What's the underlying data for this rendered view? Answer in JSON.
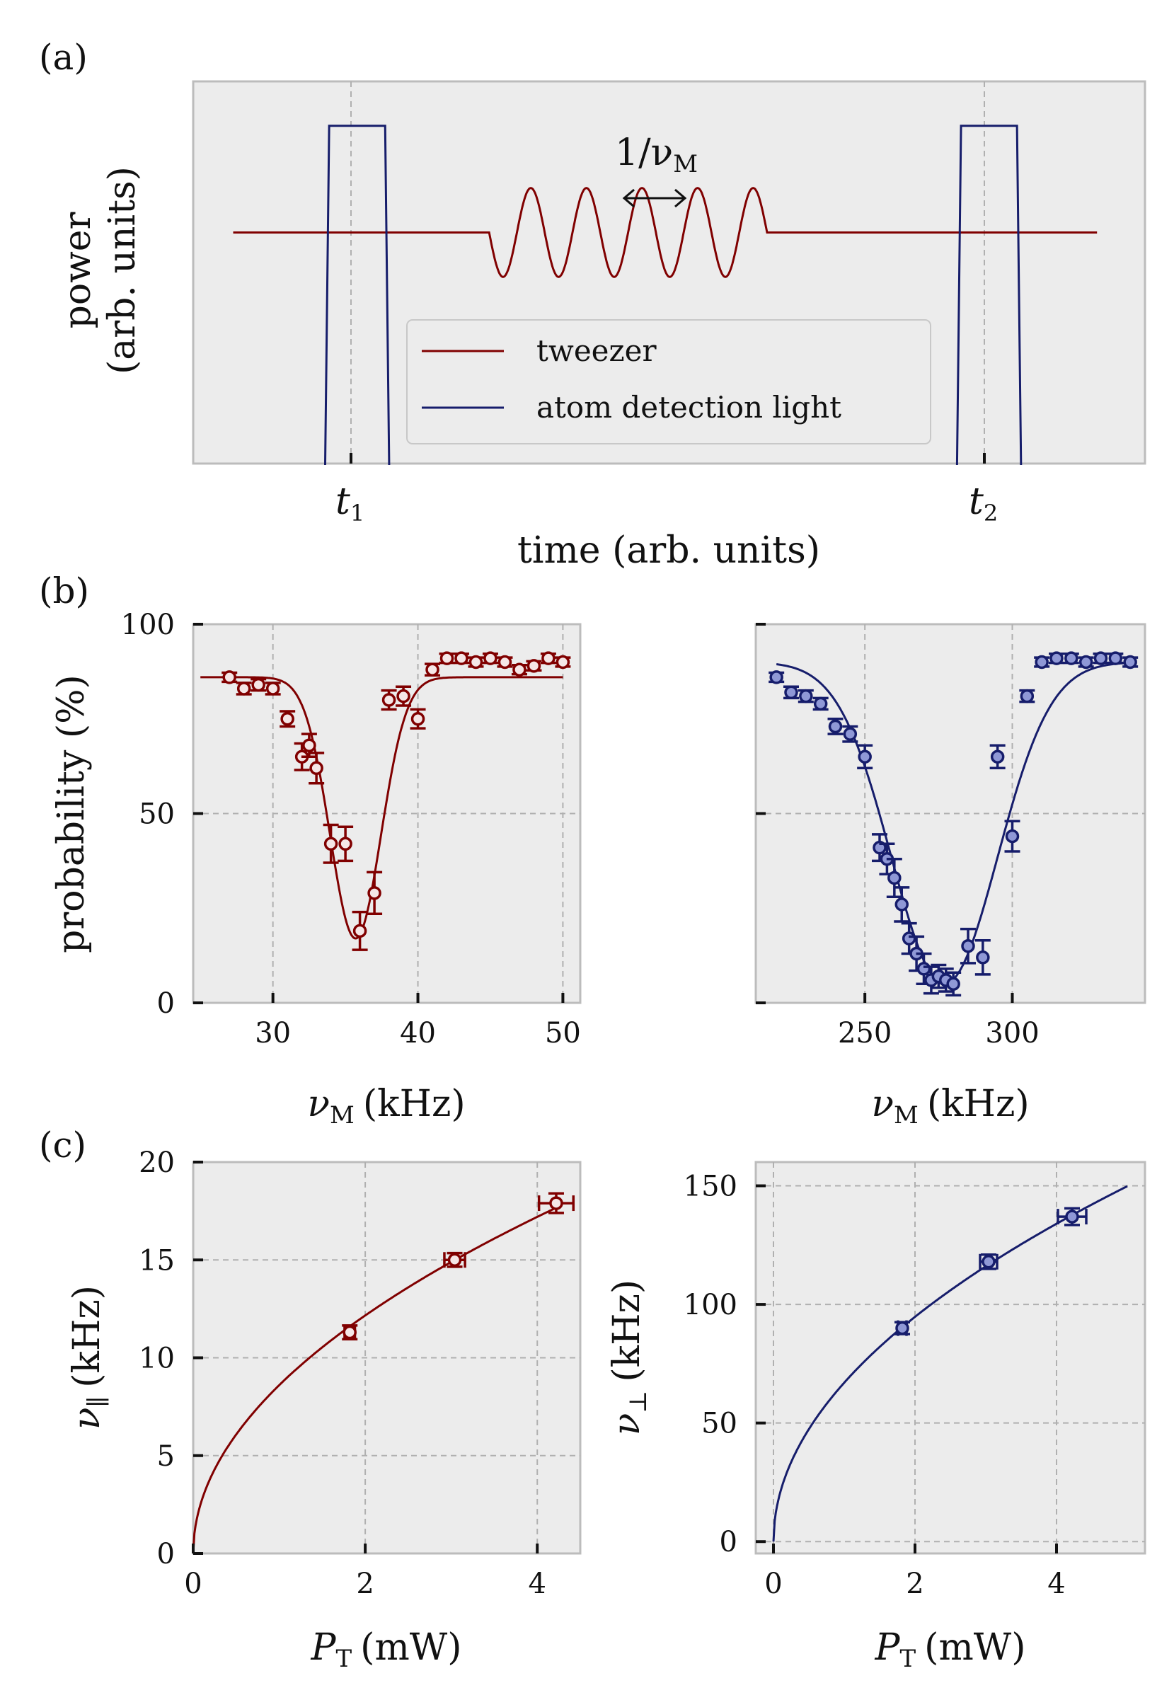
{
  "colors": {
    "red": "#800000",
    "blue": "#161d6b",
    "red_fill": "#f5e6e6",
    "blue_fill": "#8f98d6"
  },
  "panel_labels": {
    "a": "(a)",
    "b": "(b)",
    "c": "(c)"
  },
  "chart_data": [
    {
      "id": "a",
      "type": "line",
      "title": "",
      "xlabel": "time (arb. units)",
      "ylabel_line1": "power",
      "ylabel_line2": "(arb. units)",
      "annotation": "1/ν_M",
      "annotation_sub": "M",
      "annotation_main": "1/ν",
      "xticks": [
        {
          "label": "t",
          "sub": "1",
          "x": 0.12
        },
        {
          "label": "t",
          "sub": "2",
          "x": 0.91
        }
      ],
      "xlim": [
        -0.08,
        1.11
      ],
      "ylim": [
        -1.3,
        0.85
      ],
      "legend": [
        "tweezer",
        "atom detection light"
      ],
      "legend_position": "lower-right",
      "series": [
        {
          "name": "tweezer",
          "color": "red",
          "baseline": 0,
          "oscillation": {
            "start": 0.29,
            "end": 0.6375,
            "cycles": 5,
            "amplitude": 0.25
          },
          "range": [
            -0.03,
            1.05
          ]
        },
        {
          "name": "atom detection light",
          "color": "blue",
          "pulses": [
            {
              "start": 0.09,
              "end": 0.16
            },
            {
              "start": 0.88,
              "end": 0.95
            }
          ],
          "high": 0.6,
          "low": -1.3
        }
      ]
    },
    {
      "id": "b-left",
      "type": "scatter",
      "xlabel": "ν_M (kHz)",
      "xlabel_main": "ν",
      "xlabel_sub": "M",
      "xlabel_unit": "(kHz)",
      "ylabel": "probability (%)",
      "xlim": [
        24.5,
        51.2
      ],
      "ylim": [
        0,
        100
      ],
      "xticks": [
        30,
        40,
        50
      ],
      "yticks": [
        0,
        50,
        100
      ],
      "series": [
        {
          "name": "data",
          "color": "red",
          "x": [
            27,
            28,
            29,
            30,
            31,
            32,
            32.5,
            33,
            34,
            35,
            36,
            37,
            38,
            39,
            40,
            41,
            42,
            43,
            44,
            45,
            46,
            47,
            48,
            49,
            50
          ],
          "y": [
            86,
            83,
            84,
            83,
            75,
            65,
            68,
            62,
            42,
            42,
            19,
            29,
            80,
            81,
            75,
            88,
            91,
            91,
            90,
            91,
            90,
            88,
            89,
            91,
            90
          ],
          "err": [
            1.2,
            1.5,
            1.5,
            1.5,
            2.0,
            3.5,
            3.0,
            4.0,
            5.0,
            4.5,
            5.0,
            5.5,
            2.5,
            2.5,
            2.5,
            1.5,
            1.2,
            1.2,
            1.2,
            1.2,
            1.2,
            1.2,
            1.2,
            1.2,
            1.2
          ]
        }
      ],
      "fit": {
        "color": "red",
        "baseline": 86,
        "depth": 69,
        "center": 35.7,
        "sigma": 1.75,
        "range": [
          25,
          50
        ]
      }
    },
    {
      "id": "b-right",
      "type": "scatter",
      "xlabel": "ν_M (kHz)",
      "xlabel_main": "ν",
      "xlabel_sub": "M",
      "xlabel_unit": "(kHz)",
      "ylabel": "",
      "xlim": [
        213,
        345
      ],
      "ylim": [
        0,
        100
      ],
      "xticks": [
        250,
        300
      ],
      "yticks": [
        0,
        50,
        100
      ],
      "series": [
        {
          "name": "data",
          "color": "blue",
          "x": [
            220,
            225,
            230,
            235,
            240,
            245,
            250,
            255,
            257.5,
            260,
            262.5,
            265,
            267.5,
            270,
            272.5,
            275,
            277.5,
            280,
            285,
            290,
            295,
            300,
            305,
            310,
            315,
            320,
            325,
            330,
            335,
            340
          ],
          "y": [
            86,
            82,
            81,
            79,
            73,
            71,
            65,
            41,
            38,
            33,
            26,
            17,
            13,
            9,
            6,
            7,
            6,
            5,
            15,
            12,
            65,
            44,
            81,
            90,
            91,
            91,
            90,
            91,
            91,
            90
          ],
          "err": [
            1.2,
            1.5,
            1.5,
            1.5,
            2.0,
            2.0,
            3.0,
            3.5,
            4.0,
            5.0,
            4.5,
            4.0,
            4.5,
            4.0,
            3.5,
            3.0,
            3.0,
            3.0,
            4.5,
            4.5,
            3.0,
            4.0,
            1.5,
            1.2,
            1.2,
            1.2,
            1.2,
            1.2,
            1.2,
            1.2
          ]
        }
      ],
      "fit": {
        "color": "blue",
        "baseline": 90,
        "depth": 85,
        "center": 277,
        "sigma": 18,
        "range": [
          220,
          340
        ]
      }
    },
    {
      "id": "c-left",
      "type": "scatter",
      "xlabel": "P_T (mW)",
      "xlabel_main": "P",
      "xlabel_sub": "T",
      "xlabel_unit": "(mW)",
      "ylabel": "ν_∥ (kHz)",
      "ylabel_main": "ν",
      "ylabel_sub": "∥",
      "ylabel_unit": "(kHz)",
      "xlim": [
        0,
        4.5
      ],
      "ylim": [
        0,
        20
      ],
      "xticks": [
        0,
        2,
        4
      ],
      "yticks": [
        0,
        5,
        10,
        15,
        20
      ],
      "series": [
        {
          "name": "data",
          "color": "red",
          "x": [
            1.82,
            3.04,
            4.22
          ],
          "y": [
            11.3,
            15.0,
            17.9
          ],
          "xerr": [
            0.06,
            0.12,
            0.2
          ],
          "yerr": [
            0.35,
            0.35,
            0.5
          ]
        }
      ],
      "fit": {
        "color": "red",
        "coef": 8.6,
        "power": 0.5,
        "range": [
          0,
          4.2
        ]
      }
    },
    {
      "id": "c-right",
      "type": "scatter",
      "xlabel": "P_T (mW)",
      "xlabel_main": "P",
      "xlabel_sub": "T",
      "xlabel_unit": "(mW)",
      "ylabel": "ν_⊥ (kHz)",
      "ylabel_main": "ν",
      "ylabel_sub": "⊥",
      "ylabel_unit": "(kHz)",
      "xlim": [
        -0.25,
        5.25
      ],
      "ylim": [
        -5,
        160
      ],
      "xticks": [
        0,
        2,
        4
      ],
      "yticks": [
        0,
        50,
        100,
        150
      ],
      "series": [
        {
          "name": "data",
          "color": "blue",
          "x": [
            1.82,
            3.04,
            4.22
          ],
          "y": [
            90,
            118,
            137
          ],
          "xerr": [
            0.06,
            0.12,
            0.2
          ],
          "yerr": [
            2.5,
            3.0,
            3.5
          ]
        }
      ],
      "fit": {
        "color": "blue",
        "coef": 67,
        "power": 0.5,
        "range": [
          0,
          5
        ]
      }
    }
  ]
}
